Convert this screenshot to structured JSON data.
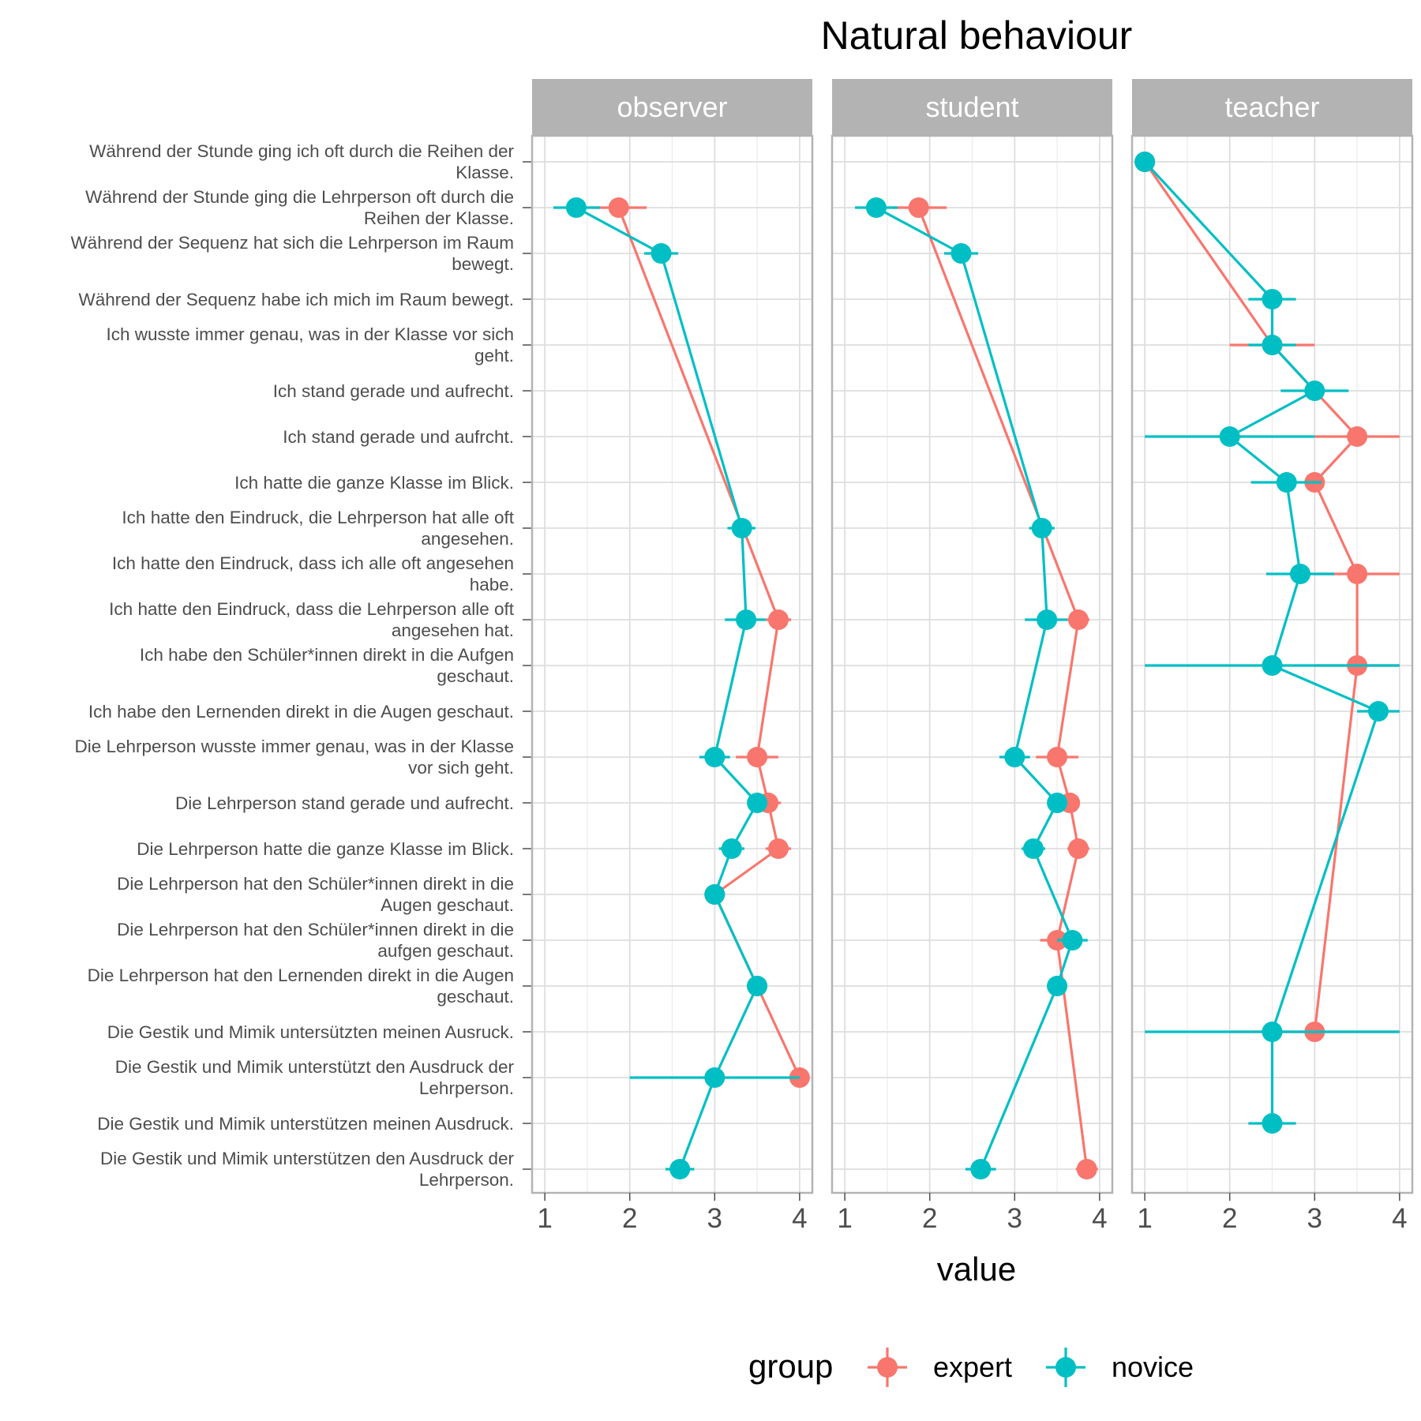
{
  "chart_data": {
    "type": "line",
    "title": "Natural behaviour",
    "xlabel": "value",
    "ylabel": "",
    "xlim": [
      0.85,
      4.15
    ],
    "x_ticks": [
      1,
      2,
      3,
      4
    ],
    "grid": true,
    "legend_position": "bottom",
    "legend_title": "group",
    "group_colors": {
      "expert": "#F8766D",
      "novice": "#00BFC4"
    },
    "groups": [
      "expert",
      "novice"
    ],
    "panel_strip_color": "#B3B3B3",
    "panels": [
      "observer",
      "student",
      "teacher"
    ],
    "items": [
      "Während der Stunde ging ich oft durch die Reihen der Klasse.",
      "Während der Stunde ging die Lehrperson oft durch die Reihen der Klasse.",
      "Während der Sequenz hat sich die Lehrperson im Raum bewegt.",
      "Während der Sequenz habe ich mich im Raum bewegt.",
      "Ich wusste immer genau, was in der Klasse vor sich geht.",
      "Ich stand gerade und aufrecht.",
      "Ich stand gerade und aufrcht.",
      "Ich hatte die ganze Klasse im Blick.",
      "Ich hatte den Eindruck, die Lehrperson hat alle oft angesehen.",
      "Ich hatte den Eindruck, dass ich alle oft angesehen habe.",
      "Ich hatte den Eindruck, dass die Lehrperson alle oft angesehen hat.",
      "Ich habe den Schüler*innen direkt in die Aufgen geschaut.",
      "Ich habe den Lernenden direkt in die Augen geschaut.",
      "Die Lehrperson wusste immer genau, was in der Klasse vor sich geht.",
      "Die Lehrperson stand gerade und aufrecht.",
      "Die Lehrperson hatte die ganze Klasse im Blick.",
      "Die Lehrperson hat den Schüler*innen direkt in die Augen geschaut.",
      "Die Lehrperson hat den Schüler*innen direkt in die aufgen geschaut.",
      "Die Lehrperson hat den Lernenden direkt in die Augen geschaut.",
      "Die Gestik und Mimik untersützten meinen Ausruck.",
      "Die Gestik und Mimik unterstützt den Ausdruck der Lehrperson.",
      "Die Gestik und Mimik unterstützen meinen Ausdruck.",
      "Die Gestik und Mimik unterstützen den Ausdruck der Lehrperson."
    ],
    "item_label_lines": [
      [
        "Während der Stunde ging ich oft durch die Reihen der",
        "Klasse."
      ],
      [
        "Während der Stunde ging die Lehrperson oft durch die",
        "Reihen der Klasse."
      ],
      [
        "Während der Sequenz hat sich die Lehrperson im Raum",
        "bewegt."
      ],
      [
        "Während der Sequenz habe ich mich im Raum bewegt."
      ],
      [
        "Ich wusste immer genau, was in der Klasse vor sich",
        "geht."
      ],
      [
        "Ich stand gerade und aufrecht."
      ],
      [
        "Ich stand gerade und aufrcht."
      ],
      [
        "Ich hatte die ganze Klasse im Blick."
      ],
      [
        "Ich hatte den Eindruck, die Lehrperson hat alle oft",
        "angesehen."
      ],
      [
        "Ich hatte den Eindruck, dass ich alle oft angesehen",
        "habe."
      ],
      [
        "Ich hatte den Eindruck, dass die Lehrperson alle oft",
        "angesehen hat."
      ],
      [
        "Ich habe den Schüler*innen direkt in die Aufgen",
        "geschaut."
      ],
      [
        "Ich habe den Lernenden direkt in die Augen geschaut."
      ],
      [
        "Die Lehrperson wusste immer genau, was in der Klasse",
        "vor sich geht."
      ],
      [
        "Die Lehrperson stand gerade und aufrecht."
      ],
      [
        "Die Lehrperson hatte die ganze Klasse im Blick."
      ],
      [
        "Die Lehrperson hat den Schüler*innen direkt in die",
        "Augen geschaut."
      ],
      [
        "Die Lehrperson hat den Schüler*innen direkt in die",
        "aufgen geschaut."
      ],
      [
        "Die Lehrperson hat den Lernenden direkt in die Augen",
        "geschaut."
      ],
      [
        "Die Gestik und Mimik untersützten meinen Ausruck."
      ],
      [
        "Die Gestik und Mimik unterstützt den Ausdruck der",
        "Lehrperson."
      ],
      [
        "Die Gestik und Mimik unterstützen meinen Ausdruck."
      ],
      [
        "Die Gestik und Mimik unterstützen den Ausdruck der",
        "Lehrperson."
      ]
    ],
    "series": [
      {
        "panel": "observer",
        "group": "expert",
        "points": [
          {
            "item": 1,
            "value": 1.87,
            "low": 1.55,
            "high": 2.2
          },
          {
            "item": 10,
            "value": 3.75,
            "low": 3.6,
            "high": 3.9
          },
          {
            "item": 13,
            "value": 3.5,
            "low": 3.25,
            "high": 3.75
          },
          {
            "item": 14,
            "value": 3.63,
            "low": 3.5,
            "high": 3.78
          },
          {
            "item": 15,
            "value": 3.75,
            "low": 3.6,
            "high": 3.9
          },
          {
            "item": 16,
            "value": 3.0,
            "low": 3.0,
            "high": 3.0
          },
          {
            "item": 18,
            "value": 3.5,
            "low": 3.5,
            "high": 3.5
          },
          {
            "item": 20,
            "value": 4.0,
            "low": 4.0,
            "high": 4.0
          }
        ]
      },
      {
        "panel": "observer",
        "group": "novice",
        "points": [
          {
            "item": 1,
            "value": 1.37,
            "low": 1.1,
            "high": 1.65
          },
          {
            "item": 2,
            "value": 2.37,
            "low": 2.17,
            "high": 2.57
          },
          {
            "item": 8,
            "value": 3.32,
            "low": 3.15,
            "high": 3.48
          },
          {
            "item": 10,
            "value": 3.37,
            "low": 3.12,
            "high": 3.6
          },
          {
            "item": 13,
            "value": 3.0,
            "low": 2.82,
            "high": 3.18
          },
          {
            "item": 14,
            "value": 3.5,
            "low": 3.4,
            "high": 3.6
          },
          {
            "item": 15,
            "value": 3.2,
            "low": 3.05,
            "high": 3.35
          },
          {
            "item": 16,
            "value": 3.0,
            "low": 2.88,
            "high": 3.12
          },
          {
            "item": 18,
            "value": 3.5,
            "low": 3.38,
            "high": 3.62
          },
          {
            "item": 20,
            "value": 3.0,
            "low": 2.0,
            "high": 4.0
          },
          {
            "item": 22,
            "value": 2.59,
            "low": 2.42,
            "high": 2.76
          }
        ]
      },
      {
        "panel": "student",
        "group": "expert",
        "points": [
          {
            "item": 1,
            "value": 1.87,
            "low": 1.55,
            "high": 2.2
          },
          {
            "item": 10,
            "value": 3.75,
            "low": 3.62,
            "high": 3.88
          },
          {
            "item": 13,
            "value": 3.5,
            "low": 3.25,
            "high": 3.75
          },
          {
            "item": 14,
            "value": 3.65,
            "low": 3.55,
            "high": 3.75
          },
          {
            "item": 15,
            "value": 3.75,
            "low": 3.62,
            "high": 3.88
          },
          {
            "item": 17,
            "value": 3.5,
            "low": 3.3,
            "high": 3.7
          },
          {
            "item": 22,
            "value": 3.85,
            "low": 3.72,
            "high": 3.98
          }
        ]
      },
      {
        "panel": "student",
        "group": "novice",
        "points": [
          {
            "item": 1,
            "value": 1.37,
            "low": 1.12,
            "high": 1.62
          },
          {
            "item": 2,
            "value": 2.37,
            "low": 2.17,
            "high": 2.57
          },
          {
            "item": 8,
            "value": 3.32,
            "low": 3.17,
            "high": 3.47
          },
          {
            "item": 10,
            "value": 3.38,
            "low": 3.12,
            "high": 3.62
          },
          {
            "item": 13,
            "value": 3.0,
            "low": 2.82,
            "high": 3.18
          },
          {
            "item": 14,
            "value": 3.5,
            "low": 3.4,
            "high": 3.6
          },
          {
            "item": 15,
            "value": 3.22,
            "low": 3.08,
            "high": 3.36
          },
          {
            "item": 17,
            "value": 3.68,
            "low": 3.5,
            "high": 3.86
          },
          {
            "item": 18,
            "value": 3.5,
            "low": 3.38,
            "high": 3.62
          },
          {
            "item": 22,
            "value": 2.6,
            "low": 2.42,
            "high": 2.78
          }
        ]
      },
      {
        "panel": "teacher",
        "group": "expert",
        "points": [
          {
            "item": 0,
            "value": 1.0,
            "low": 1.0,
            "high": 1.0
          },
          {
            "item": 4,
            "value": 2.5,
            "low": 2.0,
            "high": 3.0
          },
          {
            "item": 6,
            "value": 3.5,
            "low": 3.0,
            "high": 4.0
          },
          {
            "item": 7,
            "value": 3.0,
            "low": 3.0,
            "high": 3.0
          },
          {
            "item": 9,
            "value": 3.5,
            "low": 3.0,
            "high": 4.0
          },
          {
            "item": 11,
            "value": 3.5,
            "low": 3.0,
            "high": 4.0
          },
          {
            "item": 19,
            "value": 3.0,
            "low": 2.0,
            "high": 4.0
          }
        ]
      },
      {
        "panel": "teacher",
        "group": "novice",
        "points": [
          {
            "item": 0,
            "value": 1.0,
            "low": 1.0,
            "high": 1.0
          },
          {
            "item": 3,
            "value": 2.5,
            "low": 2.22,
            "high": 2.78
          },
          {
            "item": 4,
            "value": 2.5,
            "low": 2.22,
            "high": 2.78
          },
          {
            "item": 5,
            "value": 3.0,
            "low": 2.6,
            "high": 3.4
          },
          {
            "item": 6,
            "value": 2.0,
            "low": 1.0,
            "high": 3.0
          },
          {
            "item": 7,
            "value": 2.67,
            "low": 2.25,
            "high": 3.08
          },
          {
            "item": 9,
            "value": 2.83,
            "low": 2.43,
            "high": 3.23
          },
          {
            "item": 11,
            "value": 2.5,
            "low": 1.0,
            "high": 4.0
          },
          {
            "item": 12,
            "value": 3.75,
            "low": 3.5,
            "high": 4.0
          },
          {
            "item": 19,
            "value": 2.5,
            "low": 1.0,
            "high": 4.0
          },
          {
            "item": 21,
            "value": 2.5,
            "low": 2.22,
            "high": 2.78
          }
        ]
      }
    ]
  }
}
